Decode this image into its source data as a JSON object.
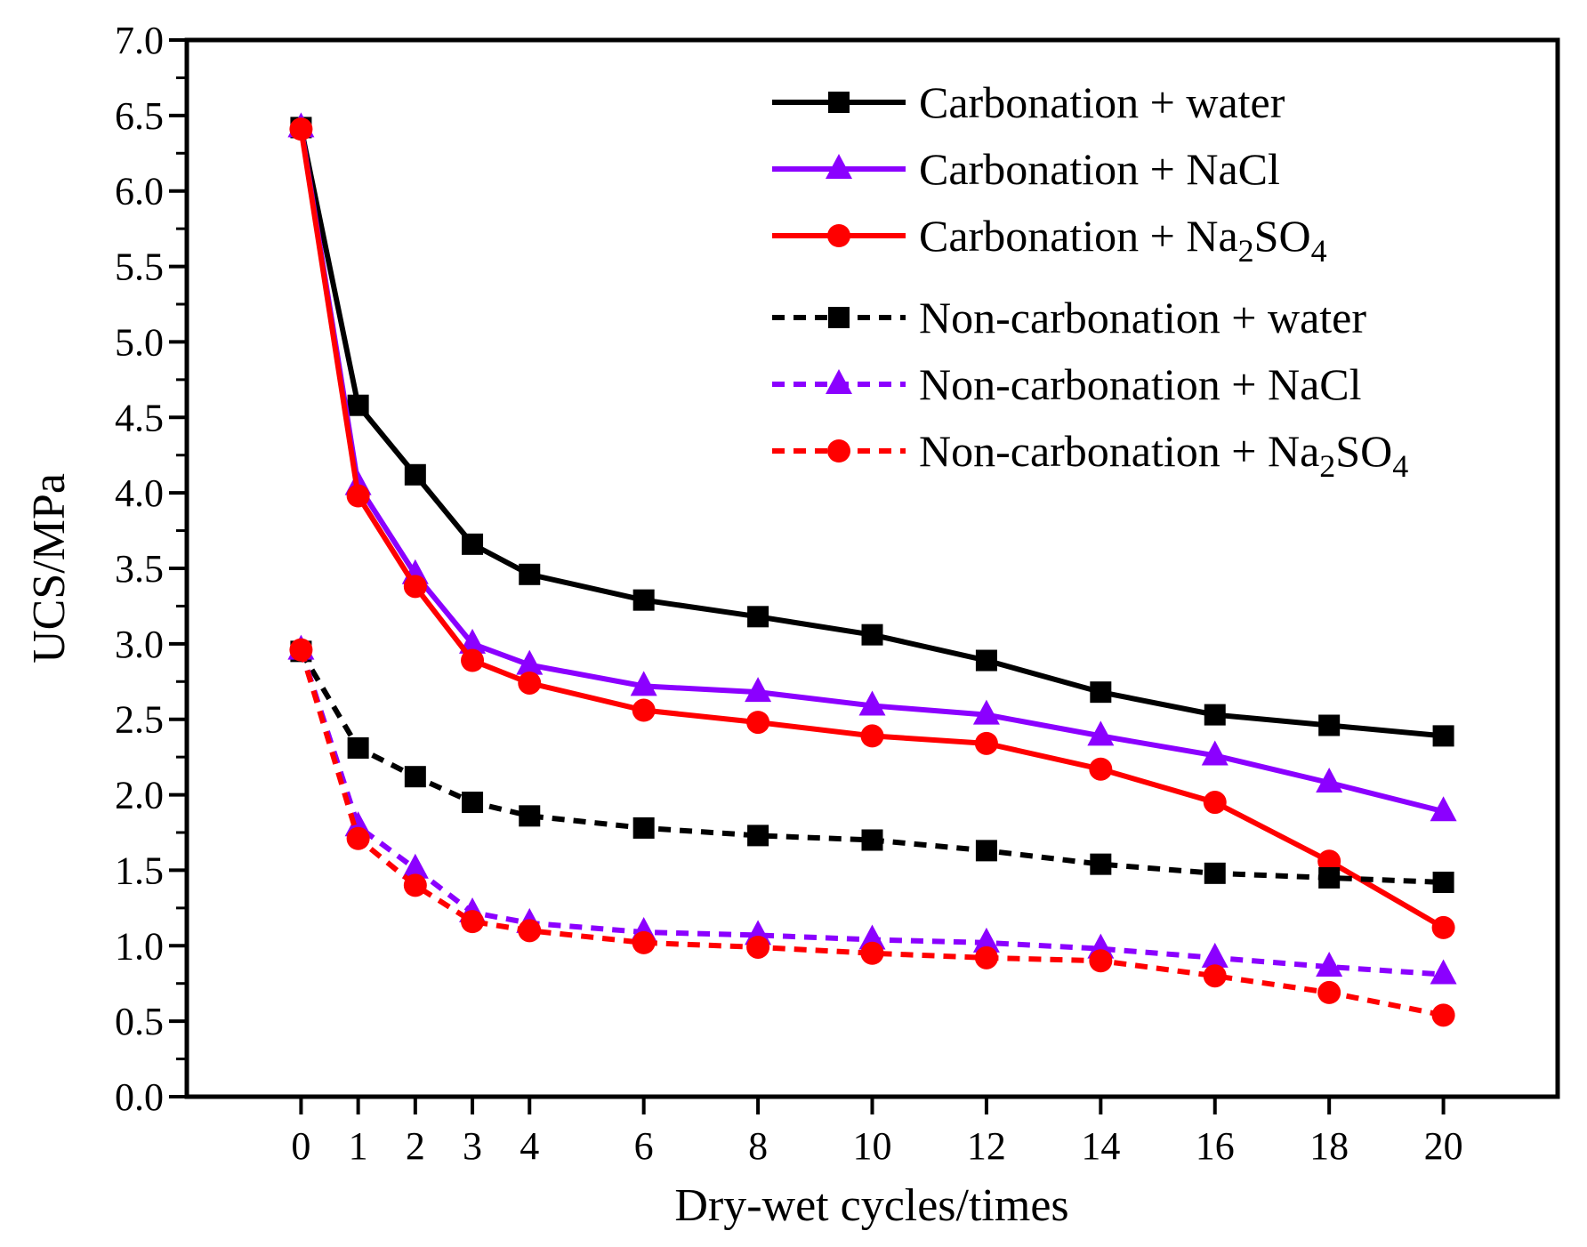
{
  "chart_data": {
    "type": "line",
    "title": "",
    "xlabel": "Dry-wet cycles/times",
    "ylabel": "UCS/MPa",
    "x": [
      0,
      1,
      2,
      3,
      4,
      6,
      8,
      10,
      12,
      14,
      16,
      18,
      20
    ],
    "x_tick_labels": [
      "0",
      "1",
      "2",
      "3",
      "4",
      "6",
      "8",
      "10",
      "12",
      "14",
      "16",
      "18",
      "20"
    ],
    "xlim": [
      -2,
      22
    ],
    "ylim": [
      0,
      7
    ],
    "y_ticks": [
      "0.0",
      "0.5",
      "1.0",
      "1.5",
      "2.0",
      "2.5",
      "3.0",
      "3.5",
      "4.0",
      "4.5",
      "5.0",
      "5.5",
      "6.0",
      "6.5",
      "7.0"
    ],
    "grid": false,
    "legend_position": "top-right",
    "series": [
      {
        "name": "Carbonation + water",
        "label_main": "Carbonation + water",
        "color": "#000000",
        "line_style": "solid",
        "marker": "square",
        "values": [
          6.42,
          4.58,
          4.12,
          3.66,
          3.46,
          3.29,
          3.18,
          3.06,
          2.89,
          2.68,
          2.53,
          2.46,
          2.39
        ]
      },
      {
        "name": "Carbonation + NaCl",
        "label_main": "Carbonation + NaCl",
        "color": "#8b00ff",
        "line_style": "solid",
        "marker": "triangle",
        "values": [
          6.42,
          4.05,
          3.46,
          3.0,
          2.86,
          2.72,
          2.68,
          2.59,
          2.53,
          2.39,
          2.26,
          2.08,
          1.89
        ]
      },
      {
        "name": "Carbonation + Na2SO4",
        "label_main": "Carbonation + Na",
        "sub1": "2",
        "mid": "SO",
        "sub2": "4",
        "color": "#ff0000",
        "line_style": "solid",
        "marker": "circle",
        "values": [
          6.41,
          3.98,
          3.38,
          2.89,
          2.74,
          2.56,
          2.48,
          2.39,
          2.34,
          2.17,
          1.95,
          1.56,
          1.12
        ]
      },
      {
        "name": "Non-carbonation + water",
        "label_main": "Non-carbonation + water",
        "color": "#000000",
        "line_style": "dashed",
        "marker": "square",
        "values": [
          2.95,
          2.31,
          2.12,
          1.95,
          1.86,
          1.78,
          1.73,
          1.7,
          1.63,
          1.54,
          1.48,
          1.45,
          1.42
        ]
      },
      {
        "name": "Non-carbonation + NaCl",
        "label_main": "Non-carbonation + NaCl",
        "color": "#8b00ff",
        "line_style": "dashed",
        "marker": "triangle",
        "values": [
          2.96,
          1.79,
          1.51,
          1.22,
          1.15,
          1.09,
          1.07,
          1.04,
          1.02,
          0.98,
          0.92,
          0.86,
          0.81
        ]
      },
      {
        "name": "Non-carbonation + Na2SO4",
        "label_main": "Non-carbonation + Na",
        "sub1": "2",
        "mid": "SO",
        "sub2": "4",
        "color": "#ff0000",
        "line_style": "dashed",
        "marker": "circle",
        "values": [
          2.96,
          1.71,
          1.4,
          1.16,
          1.1,
          1.02,
          0.99,
          0.95,
          0.92,
          0.9,
          0.8,
          0.69,
          0.54
        ]
      }
    ]
  }
}
